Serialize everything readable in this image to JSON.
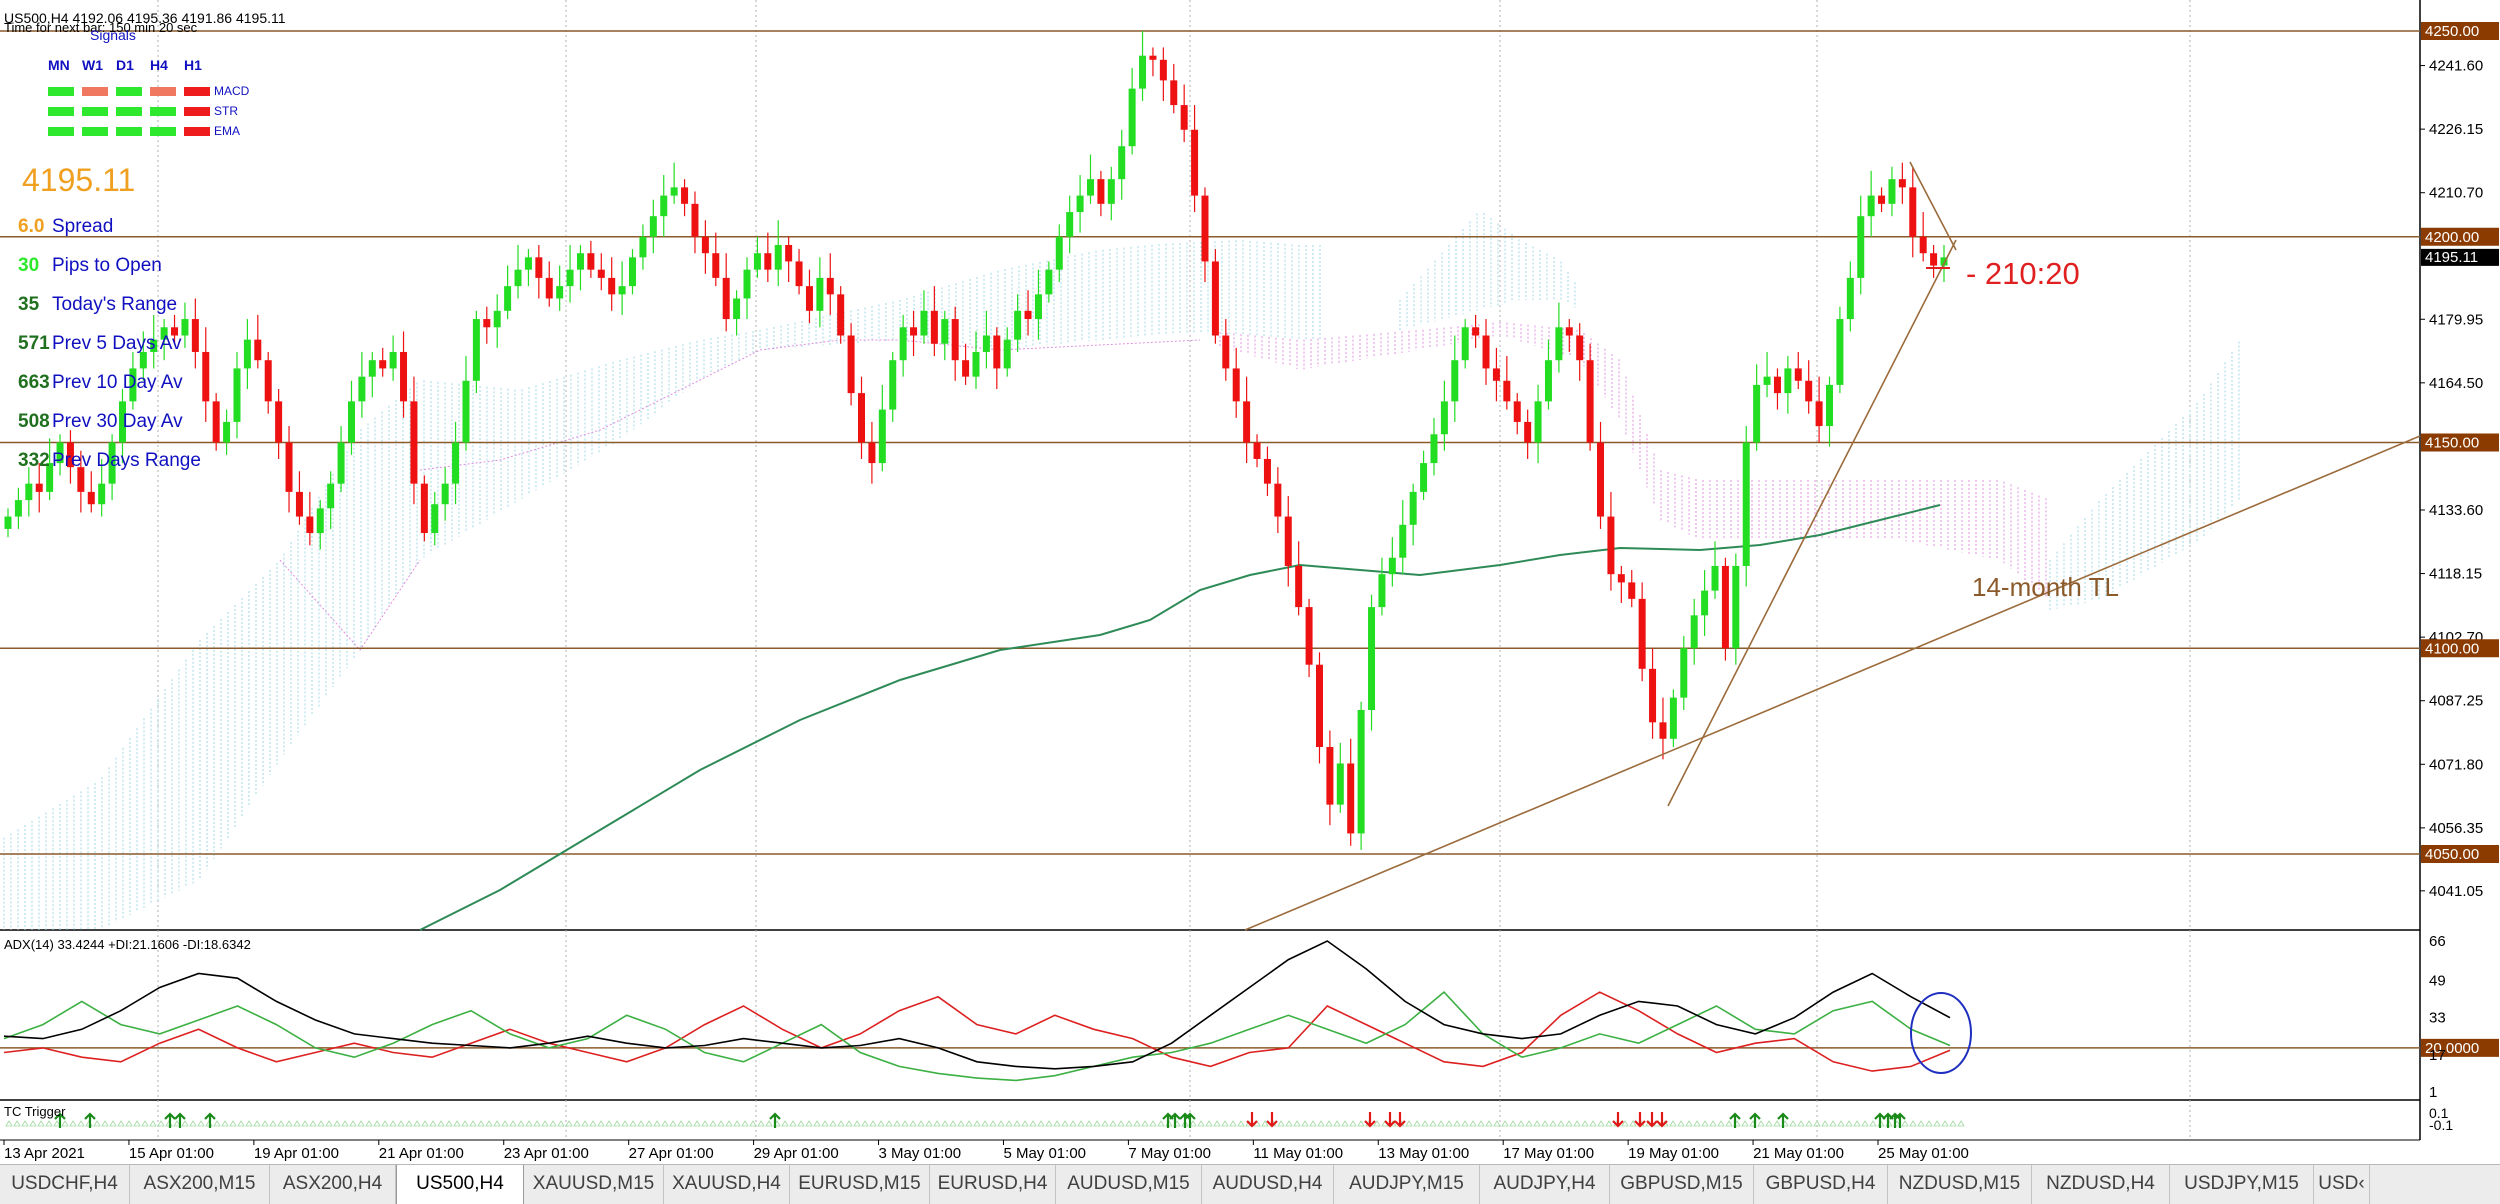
{
  "header": {
    "symbol_line": "US500,H4  4192.06 4195.36 4191.86 4195.11",
    "timer": "Time for next bar: 150 min 20 sec"
  },
  "signals": {
    "title": "Signals",
    "timeframes": [
      "MN",
      "W1",
      "D1",
      "H4",
      "H1"
    ],
    "indicators": [
      {
        "name": "MACD",
        "states": [
          "green",
          "salmon",
          "green",
          "salmon",
          "red"
        ]
      },
      {
        "name": "STR",
        "states": [
          "green",
          "green",
          "green",
          "green",
          "red"
        ]
      },
      {
        "name": "EMA",
        "states": [
          "green",
          "green",
          "green",
          "green",
          "red"
        ]
      }
    ],
    "colors": {
      "green": "#2ee82e",
      "salmon": "#f07860",
      "red": "#ee1c1c"
    }
  },
  "info": {
    "price": "4195.11",
    "stats": [
      {
        "value": "6.0",
        "label": "Spread",
        "color": "#f0a020"
      },
      {
        "value": "30",
        "label": "Pips to Open",
        "color": "#2ee82e"
      },
      {
        "value": "35",
        "label": "Today's Range",
        "color": "#207020"
      },
      {
        "value": "571",
        "label": "Prev 5 Days Av",
        "color": "#207020"
      },
      {
        "value": "663",
        "label": "Prev 10 Day Av",
        "color": "#207020"
      },
      {
        "value": "508",
        "label": "Prev 30 Day Av",
        "color": "#207020"
      },
      {
        "value": "332",
        "label": "Prev Days Range",
        "color": "#207020"
      }
    ]
  },
  "annotations": {
    "ratio": "- 210:20",
    "trendline": "14-month TL"
  },
  "price_axis": {
    "labels": [
      "4241.60",
      "4226.15",
      "4210.70",
      "4195.11",
      "4179.95",
      "4164.50",
      "4133.60",
      "4118.15",
      "4102.70",
      "4087.25",
      "4071.80",
      "4056.35",
      "4041.05"
    ],
    "label_values": [
      4241.6,
      4226.15,
      4210.7,
      4195.11,
      4179.95,
      4164.5,
      4133.6,
      4118.15,
      4102.7,
      4087.25,
      4071.8,
      4056.35,
      4041.05
    ],
    "levels": [
      {
        "value": 4250.0,
        "label": "4250.00"
      },
      {
        "value": 4200.0,
        "label": "4200.00"
      },
      {
        "value": 4150.0,
        "label": "4150.00"
      },
      {
        "value": 4100.0,
        "label": "4100.00"
      },
      {
        "value": 4050.0,
        "label": "4050.00"
      }
    ],
    "current": {
      "value": 4195.11,
      "label": "4195.11"
    }
  },
  "time_axis": {
    "labels": [
      "13 Apr 2021",
      "15 Apr 01:00",
      "19 Apr 01:00",
      "21 Apr 01:00",
      "23 Apr 01:00",
      "27 Apr 01:00",
      "29 Apr 01:00",
      "3 May 01:00",
      "5 May 01:00",
      "7 May 01:00",
      "11 May 01:00",
      "13 May 01:00",
      "17 May 01:00",
      "19 May 01:00",
      "21 May 01:00",
      "25 May 01:00"
    ]
  },
  "adx": {
    "label": "ADX(14) 33.4244 +DI:21.1606 -DI:18.6342",
    "axis_labels": [
      "66",
      "49",
      "33",
      "17",
      "1"
    ],
    "axis_values": [
      66,
      49,
      33,
      17,
      1
    ],
    "level": {
      "value": 20,
      "label": "20.0000"
    },
    "adx_line": [
      25,
      24,
      28,
      36,
      46,
      52,
      50,
      40,
      32,
      26,
      24,
      22,
      21,
      20,
      22,
      25,
      22,
      20,
      21,
      24,
      22,
      20,
      21,
      24,
      20,
      14,
      12,
      11,
      12,
      14,
      22,
      34,
      46,
      58,
      66,
      54,
      40,
      30,
      26,
      24,
      26,
      34,
      40,
      38,
      30,
      26,
      33,
      44,
      52,
      42,
      33
    ],
    "plus_di": [
      24,
      30,
      40,
      30,
      26,
      32,
      38,
      30,
      20,
      16,
      22,
      30,
      36,
      26,
      20,
      24,
      34,
      28,
      18,
      14,
      22,
      30,
      18,
      12,
      9,
      7,
      6,
      8,
      12,
      16,
      18,
      22,
      28,
      34,
      28,
      22,
      30,
      44,
      26,
      16,
      20,
      26,
      22,
      30,
      38,
      28,
      26,
      36,
      40,
      28,
      21
    ],
    "minus_di": [
      18,
      20,
      16,
      14,
      22,
      28,
      20,
      14,
      18,
      22,
      18,
      16,
      22,
      28,
      22,
      18,
      14,
      20,
      30,
      38,
      28,
      20,
      26,
      36,
      42,
      30,
      26,
      34,
      28,
      24,
      16,
      12,
      18,
      20,
      38,
      30,
      22,
      14,
      12,
      18,
      34,
      44,
      36,
      26,
      18,
      22,
      24,
      14,
      10,
      12,
      19
    ]
  },
  "tc_trigger": {
    "label": "TC Trigger",
    "axis_labels": [
      "0.1",
      "-0.1"
    ]
  },
  "tabs": [
    {
      "label": "USDCHF,H4",
      "active": false
    },
    {
      "label": "ASX200,M15",
      "active": false
    },
    {
      "label": "ASX200,H4",
      "active": false
    },
    {
      "label": "US500,H4",
      "active": true
    },
    {
      "label": "XAUUSD,M15",
      "active": false
    },
    {
      "label": "XAUUSD,H4",
      "active": false
    },
    {
      "label": "EURUSD,M15",
      "active": false
    },
    {
      "label": "EURUSD,H4",
      "active": false
    },
    {
      "label": "AUDUSD,M15",
      "active": false
    },
    {
      "label": "AUDUSD,H4",
      "active": false
    },
    {
      "label": "AUDJPY,M15",
      "active": false
    },
    {
      "label": "AUDJPY,H4",
      "active": false
    },
    {
      "label": "GBPUSD,M15",
      "active": false
    },
    {
      "label": "GBPUSD,H4",
      "active": false
    },
    {
      "label": "NZDUSD,M15",
      "active": false
    },
    {
      "label": "NZDUSD,H4",
      "active": false
    },
    {
      "label": "USDJPY,M15",
      "active": false
    },
    {
      "label": "USD‹",
      "active": false
    }
  ],
  "colors": {
    "bull": "#22dd22",
    "bear": "#ee1111",
    "level_line": "#8b5a2b",
    "level_tag": "#8b3a00",
    "ma_line": "#2e8b57",
    "cloud_blue": "#9fd8e6",
    "cloud_pink": "#e090e0",
    "adx": "#000000",
    "plus_di": "#3cb043",
    "minus_di": "#dd2020",
    "trendline": "#9b6b3b",
    "circle": "#1f2fbf"
  }
}
